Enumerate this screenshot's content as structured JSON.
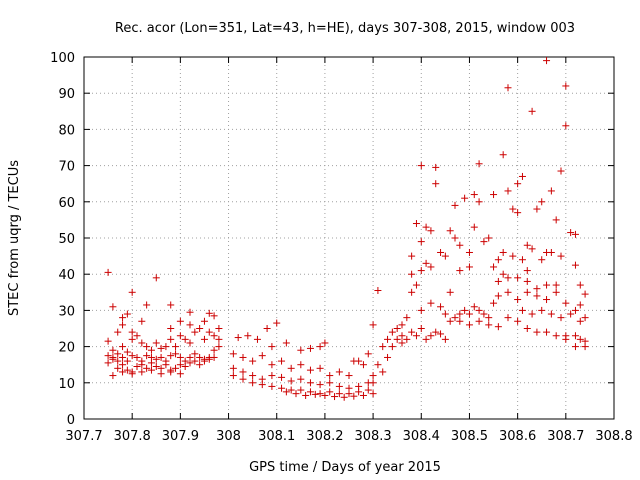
{
  "chart_data": {
    "type": "scatter",
    "title": "Rec. acor (Lon=351, Lat=43, h=HE), days 307-308, 2015, window 003",
    "xlabel": "GPS time / Days of year 2015",
    "ylabel": "STEC from uqrg / TECUs",
    "xlim": [
      307.7,
      308.8
    ],
    "ylim": [
      0,
      100
    ],
    "x_ticks": [
      "307.7",
      "307.8",
      "307.9",
      "308",
      "308.1",
      "308.2",
      "308.3",
      "308.4",
      "308.5",
      "308.6",
      "308.7",
      "308.8"
    ],
    "y_ticks": [
      "0",
      "10",
      "20",
      "30",
      "40",
      "50",
      "60",
      "70",
      "80",
      "90",
      "100"
    ],
    "grid": true,
    "marker": "+",
    "color": "#cc0000",
    "series": [
      {
        "points": [
          [
            307.75,
            40.5
          ],
          [
            307.76,
            31
          ],
          [
            307.78,
            28
          ],
          [
            307.79,
            29
          ],
          [
            307.8,
            35
          ],
          [
            307.85,
            39
          ],
          [
            307.83,
            31.5
          ],
          [
            307.88,
            31.5
          ],
          [
            307.92,
            29.5
          ],
          [
            307.9,
            27
          ],
          [
            307.96,
            29.2
          ],
          [
            307.97,
            28.5
          ],
          [
            307.98,
            25
          ],
          [
            307.75,
            21.5
          ],
          [
            307.76,
            19
          ],
          [
            307.77,
            18
          ],
          [
            307.78,
            20
          ],
          [
            307.79,
            18.5
          ],
          [
            307.8,
            22
          ],
          [
            307.81,
            23
          ],
          [
            307.82,
            21
          ],
          [
            307.83,
            20
          ],
          [
            307.84,
            19
          ],
          [
            307.85,
            21
          ],
          [
            307.86,
            19.5
          ],
          [
            307.87,
            20
          ],
          [
            307.88,
            22
          ],
          [
            307.89,
            20
          ],
          [
            307.9,
            23
          ],
          [
            307.91,
            22
          ],
          [
            307.92,
            21
          ],
          [
            307.93,
            24
          ],
          [
            307.94,
            25
          ],
          [
            307.95,
            22
          ],
          [
            307.96,
            24
          ],
          [
            307.97,
            23
          ],
          [
            307.98,
            22
          ],
          [
            307.75,
            17.5
          ],
          [
            307.76,
            17
          ],
          [
            307.77,
            16
          ],
          [
            307.78,
            17
          ],
          [
            307.79,
            16
          ],
          [
            307.8,
            17.5
          ],
          [
            307.81,
            17
          ],
          [
            307.82,
            16
          ],
          [
            307.83,
            17.5
          ],
          [
            307.84,
            17
          ],
          [
            307.85,
            16.5
          ],
          [
            307.86,
            17
          ],
          [
            307.87,
            16
          ],
          [
            307.88,
            17.5
          ],
          [
            307.89,
            18
          ],
          [
            307.9,
            17
          ],
          [
            307.91,
            16
          ],
          [
            307.92,
            17
          ],
          [
            307.93,
            18
          ],
          [
            307.94,
            17
          ],
          [
            307.95,
            16.5
          ],
          [
            307.96,
            17
          ],
          [
            307.97,
            19
          ],
          [
            307.98,
            20
          ],
          [
            307.75,
            15.5
          ],
          [
            307.76,
            16.5
          ],
          [
            307.77,
            14
          ],
          [
            307.78,
            15
          ],
          [
            307.79,
            13.5
          ],
          [
            307.8,
            13
          ],
          [
            307.81,
            14.5
          ],
          [
            307.82,
            15
          ],
          [
            307.83,
            14
          ],
          [
            307.84,
            15.5
          ],
          [
            307.85,
            14.5
          ],
          [
            307.86,
            14
          ],
          [
            307.87,
            15
          ],
          [
            307.88,
            13.5
          ],
          [
            307.89,
            14
          ],
          [
            307.9,
            15
          ],
          [
            307.91,
            14.5
          ],
          [
            307.92,
            15.5
          ],
          [
            307.93,
            16
          ],
          [
            307.94,
            15
          ],
          [
            307.95,
            16
          ],
          [
            307.96,
            16.5
          ],
          [
            307.97,
            17
          ],
          [
            307.76,
            12
          ],
          [
            307.78,
            13
          ],
          [
            307.8,
            12.5
          ],
          [
            307.82,
            13
          ],
          [
            307.84,
            13.5
          ],
          [
            307.86,
            12.5
          ],
          [
            307.88,
            13
          ],
          [
            307.9,
            12.5
          ],
          [
            307.78,
            26
          ],
          [
            307.8,
            24
          ],
          [
            307.82,
            27
          ],
          [
            307.88,
            25
          ],
          [
            307.92,
            26
          ],
          [
            307.95,
            27
          ],
          [
            307.77,
            24
          ],
          [
            308.02,
            22.5
          ],
          [
            308.04,
            23
          ],
          [
            308.06,
            22
          ],
          [
            308.08,
            25
          ],
          [
            308.1,
            26.5
          ],
          [
            308.09,
            20
          ],
          [
            308.12,
            21
          ],
          [
            308.15,
            19
          ],
          [
            308.17,
            19.5
          ],
          [
            308.19,
            20
          ],
          [
            308.2,
            21
          ],
          [
            308.01,
            18
          ],
          [
            308.03,
            17
          ],
          [
            308.05,
            16
          ],
          [
            308.07,
            17.5
          ],
          [
            308.09,
            15
          ],
          [
            308.11,
            16
          ],
          [
            308.13,
            14
          ],
          [
            308.15,
            15
          ],
          [
            308.17,
            13.5
          ],
          [
            308.19,
            14
          ],
          [
            308.21,
            12
          ],
          [
            308.23,
            13
          ],
          [
            308.25,
            12
          ],
          [
            308.26,
            16
          ],
          [
            308.27,
            16
          ],
          [
            308.28,
            15
          ],
          [
            308.01,
            14
          ],
          [
            308.03,
            13
          ],
          [
            308.05,
            12
          ],
          [
            308.07,
            11
          ],
          [
            308.09,
            12
          ],
          [
            308.11,
            11.5
          ],
          [
            308.13,
            10.5
          ],
          [
            308.15,
            11
          ],
          [
            308.17,
            10
          ],
          [
            308.19,
            9.5
          ],
          [
            308.21,
            10
          ],
          [
            308.23,
            9
          ],
          [
            308.25,
            8.5
          ],
          [
            308.27,
            9
          ],
          [
            308.29,
            10
          ],
          [
            308.01,
            12
          ],
          [
            308.03,
            11
          ],
          [
            308.05,
            10
          ],
          [
            308.07,
            9.5
          ],
          [
            308.09,
            9
          ],
          [
            308.11,
            8.5
          ],
          [
            308.13,
            8
          ],
          [
            308.15,
            8
          ],
          [
            308.17,
            7.5
          ],
          [
            308.19,
            7
          ],
          [
            308.21,
            7.5
          ],
          [
            308.23,
            7
          ],
          [
            308.25,
            7
          ],
          [
            308.27,
            7.5
          ],
          [
            308.29,
            8
          ],
          [
            308.12,
            7.5
          ],
          [
            308.14,
            7
          ],
          [
            308.16,
            6.5
          ],
          [
            308.18,
            6.8
          ],
          [
            308.2,
            6.5
          ],
          [
            308.22,
            6.2
          ],
          [
            308.24,
            6
          ],
          [
            308.26,
            6.3
          ],
          [
            308.28,
            6.5
          ],
          [
            308.3,
            7
          ],
          [
            308.3,
            12
          ],
          [
            308.31,
            15
          ],
          [
            308.32,
            20
          ],
          [
            308.33,
            22
          ],
          [
            308.31,
            35.5
          ],
          [
            308.3,
            26
          ],
          [
            308.29,
            18
          ],
          [
            308.3,
            10
          ],
          [
            308.32,
            13
          ],
          [
            308.33,
            17
          ],
          [
            308.34,
            24
          ],
          [
            308.35,
            25
          ],
          [
            308.36,
            21
          ],
          [
            308.37,
            28
          ],
          [
            308.38,
            35
          ],
          [
            308.39,
            37
          ],
          [
            308.4,
            41
          ],
          [
            308.41,
            43
          ],
          [
            308.42,
            42
          ],
          [
            308.36,
            26
          ],
          [
            308.38,
            40
          ],
          [
            308.34,
            20
          ],
          [
            308.35,
            22
          ],
          [
            308.36,
            23
          ],
          [
            308.37,
            22
          ],
          [
            308.38,
            24
          ],
          [
            308.39,
            23
          ],
          [
            308.4,
            25
          ],
          [
            308.41,
            22
          ],
          [
            308.42,
            23
          ],
          [
            308.43,
            24
          ],
          [
            308.44,
            23.5
          ],
          [
            308.45,
            22
          ],
          [
            308.38,
            45
          ],
          [
            308.4,
            49
          ],
          [
            308.41,
            53
          ],
          [
            308.4,
            70
          ],
          [
            308.43,
            69.5
          ],
          [
            308.42,
            52
          ],
          [
            308.43,
            65
          ],
          [
            308.44,
            46
          ],
          [
            308.45,
            45
          ],
          [
            308.39,
            54
          ],
          [
            308.4,
            30
          ],
          [
            308.42,
            32
          ],
          [
            308.44,
            31
          ],
          [
            308.45,
            29
          ],
          [
            308.46,
            35
          ],
          [
            308.47,
            28
          ],
          [
            308.48,
            29
          ],
          [
            308.49,
            30
          ],
          [
            308.5,
            29
          ],
          [
            308.51,
            31
          ],
          [
            308.52,
            30
          ],
          [
            308.53,
            29
          ],
          [
            308.54,
            28
          ],
          [
            308.55,
            32
          ],
          [
            308.46,
            52
          ],
          [
            308.47,
            50
          ],
          [
            308.48,
            48
          ],
          [
            308.49,
            61
          ],
          [
            308.5,
            46
          ],
          [
            308.51,
            53
          ],
          [
            308.51,
            62
          ],
          [
            308.52,
            60
          ],
          [
            308.52,
            70.5
          ],
          [
            308.53,
            49
          ],
          [
            308.54,
            50
          ],
          [
            308.55,
            62
          ],
          [
            308.55,
            42
          ],
          [
            308.47,
            59
          ],
          [
            308.48,
            41
          ],
          [
            308.5,
            42
          ],
          [
            308.46,
            27
          ],
          [
            308.48,
            27
          ],
          [
            308.5,
            26
          ],
          [
            308.52,
            27
          ],
          [
            308.54,
            26
          ],
          [
            308.56,
            25.5
          ],
          [
            308.58,
            28
          ],
          [
            308.6,
            27
          ],
          [
            308.62,
            25
          ],
          [
            308.64,
            24
          ],
          [
            308.66,
            24
          ],
          [
            308.68,
            23
          ],
          [
            308.7,
            23
          ],
          [
            308.72,
            23
          ],
          [
            308.73,
            22
          ],
          [
            308.56,
            44
          ],
          [
            308.57,
            46
          ],
          [
            308.57,
            73
          ],
          [
            308.58,
            63
          ],
          [
            308.58,
            91.5
          ],
          [
            308.59,
            58
          ],
          [
            308.6,
            57
          ],
          [
            308.6,
            65
          ],
          [
            308.61,
            67
          ],
          [
            308.62,
            48
          ],
          [
            308.63,
            85
          ],
          [
            308.64,
            58
          ],
          [
            308.65,
            60
          ],
          [
            308.66,
            99
          ],
          [
            308.67,
            63
          ],
          [
            308.68,
            55
          ],
          [
            308.69,
            68.5
          ],
          [
            308.7,
            92
          ],
          [
            308.7,
            81
          ],
          [
            308.71,
            51.5
          ],
          [
            308.72,
            51
          ],
          [
            308.56,
            34
          ],
          [
            308.58,
            35
          ],
          [
            308.6,
            33
          ],
          [
            308.62,
            35
          ],
          [
            308.64,
            34
          ],
          [
            308.66,
            33
          ],
          [
            308.68,
            35
          ],
          [
            308.7,
            32
          ],
          [
            308.72,
            30
          ],
          [
            308.73,
            31.5
          ],
          [
            308.74,
            34.5
          ],
          [
            308.57,
            40
          ],
          [
            308.59,
            45
          ],
          [
            308.61,
            44
          ],
          [
            308.63,
            47
          ],
          [
            308.65,
            44
          ],
          [
            308.66,
            46
          ],
          [
            308.67,
            46
          ],
          [
            308.69,
            45
          ],
          [
            308.68,
            37
          ],
          [
            308.72,
            42.5
          ],
          [
            308.73,
            37
          ],
          [
            308.74,
            28
          ],
          [
            308.61,
            30
          ],
          [
            308.63,
            29
          ],
          [
            308.65,
            30
          ],
          [
            308.67,
            29
          ],
          [
            308.69,
            28
          ],
          [
            308.71,
            29
          ],
          [
            308.73,
            27
          ],
          [
            308.74,
            20
          ],
          [
            308.74,
            21.5
          ],
          [
            308.72,
            20
          ],
          [
            308.7,
            22
          ],
          [
            308.56,
            38
          ],
          [
            308.58,
            39
          ],
          [
            308.6,
            39
          ],
          [
            308.62,
            41
          ],
          [
            308.64,
            36
          ],
          [
            308.66,
            37
          ],
          [
            308.62,
            38
          ]
        ]
      }
    ]
  }
}
